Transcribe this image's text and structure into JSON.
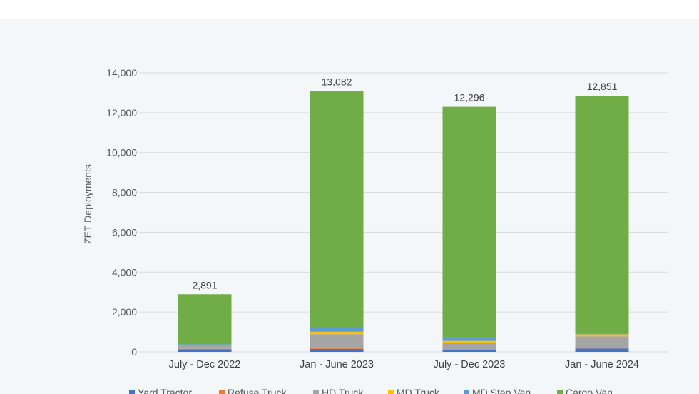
{
  "chart_data": {
    "type": "bar",
    "stacked": true,
    "ylabel": "ZET Deployments",
    "ylim": [
      0,
      14000
    ],
    "yticks": [
      "0",
      "2,000",
      "4,000",
      "6,000",
      "8,000",
      "10,000",
      "12,000",
      "14,000"
    ],
    "grid": true,
    "legend_position": "bottom",
    "categories": [
      "July - Dec 2022",
      "Jan - June 2023",
      "July - Dec 2023",
      "Jan - June 2024"
    ],
    "totals": [
      2891,
      13082,
      12296,
      12851
    ],
    "total_labels": [
      "2,891",
      "13,082",
      "12,296",
      "12,851"
    ],
    "series": [
      {
        "name": "Yard Tractor",
        "color": "#4472c4",
        "values": [
          130,
          150,
          110,
          170
        ]
      },
      {
        "name": "Refuse Truck",
        "color": "#ed7d31",
        "values": [
          20,
          40,
          30,
          40
        ]
      },
      {
        "name": "HD Truck",
        "color": "#a5a5a5",
        "values": [
          180,
          700,
          320,
          570
        ]
      },
      {
        "name": "MD Truck",
        "color": "#ffc000",
        "values": [
          20,
          120,
          90,
          100
        ]
      },
      {
        "name": "MD Step Van",
        "color": "#5b9bd5",
        "values": [
          30,
          200,
          200,
          30
        ]
      },
      {
        "name": "Cargo Van",
        "color": "#70ad47",
        "values": [
          2511,
          11872,
          11546,
          11941
        ]
      }
    ]
  }
}
